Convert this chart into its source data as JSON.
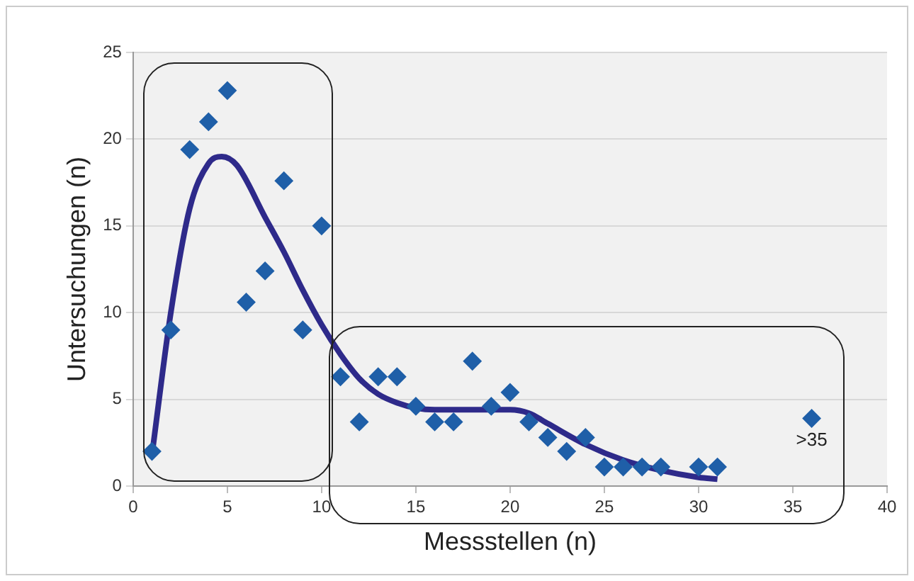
{
  "chart_data": {
    "type": "scatter",
    "xlabel": "Messstellen (n)",
    "ylabel": "Untersuchungen (n)",
    "xlim": [
      0,
      40
    ],
    "xticks": [
      0,
      5,
      10,
      15,
      20,
      25,
      30,
      35,
      40
    ],
    "ylim": [
      0,
      25
    ],
    "yticks": [
      0,
      5,
      10,
      15,
      20,
      25
    ],
    "grid": "y",
    "legend": false,
    "marker": "diamond",
    "series": [
      {
        "color": "#1f5fa8",
        "x": [
          1,
          2,
          3,
          4,
          5,
          6,
          7,
          8,
          9,
          10,
          11,
          12,
          13,
          14,
          15,
          16,
          17,
          18,
          19,
          20,
          21,
          22,
          23,
          24,
          25,
          26,
          27,
          28,
          30,
          31,
          36
        ],
        "values": [
          2,
          9,
          19.4,
          21,
          22.8,
          10.6,
          12.4,
          17.6,
          9,
          15,
          6.3,
          3.7,
          6.3,
          6.3,
          4.6,
          3.7,
          3.7,
          7.2,
          4.6,
          5.4,
          3.7,
          2.8,
          2,
          2.8,
          1.1,
          1.1,
          1.1,
          1.1,
          1.1,
          1.1,
          3.9
        ]
      },
      {
        "type": "line",
        "color": "#2e2a8a",
        "marker": "none",
        "x": [
          1,
          2,
          3,
          4,
          4.7,
          5.5,
          7,
          8,
          9,
          10,
          11,
          12,
          13,
          14,
          15,
          16,
          18,
          20,
          21,
          22,
          24,
          26,
          28,
          30,
          31
        ],
        "values": [
          1.8,
          10,
          16,
          18.6,
          19,
          18.5,
          15.5,
          13.5,
          11.3,
          9.3,
          7.6,
          6.2,
          5.3,
          4.8,
          4.5,
          4.4,
          4.4,
          4.4,
          4.2,
          3.6,
          2.4,
          1.5,
          0.9,
          0.5,
          0.4
        ]
      }
    ],
    "annotations": [
      {
        "text": ">35",
        "x": 36,
        "y": 3.9
      }
    ]
  }
}
